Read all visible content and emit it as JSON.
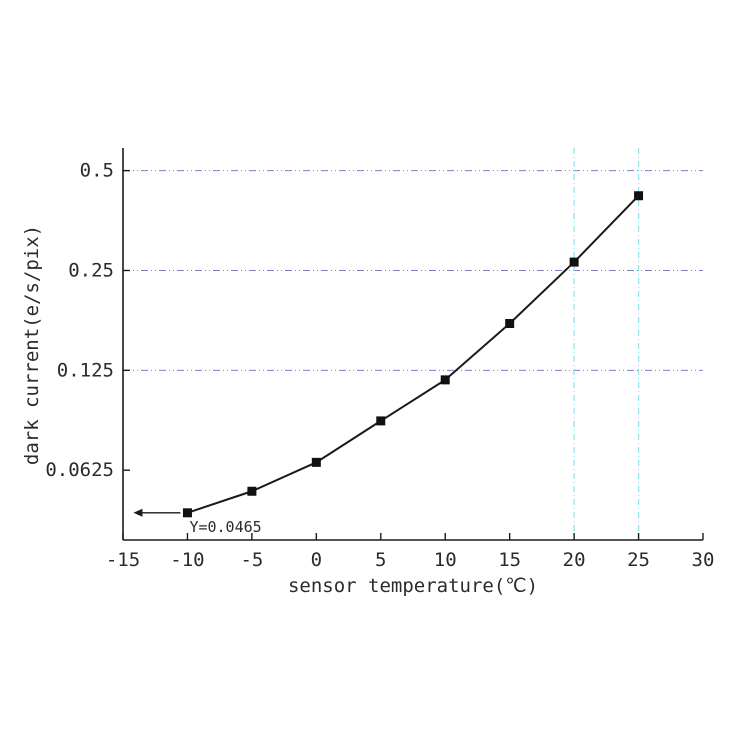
{
  "page": {
    "background": "#ffffff"
  },
  "chart_data": {
    "type": "line",
    "title": "",
    "xlabel": "sensor temperature(℃)",
    "ylabel": "dark current(e/s/pix)",
    "x": [
      -10,
      -5,
      0,
      5,
      10,
      15,
      20,
      25
    ],
    "y": [
      0.0465,
      0.054,
      0.066,
      0.088,
      0.117,
      0.173,
      0.265,
      0.42
    ],
    "xlim": [
      -15,
      30
    ],
    "ylim": [
      0.0385,
      0.585
    ],
    "y_scale": "log2",
    "x_ticks": [
      -15,
      -10,
      -5,
      0,
      5,
      10,
      15,
      20,
      25,
      30
    ],
    "x_tick_labels": [
      "-15",
      "-10",
      "-5",
      "0",
      "5",
      "10",
      "15",
      "20",
      "25",
      "30"
    ],
    "y_ticks": [
      0.0625,
      0.125,
      0.25,
      0.5
    ],
    "y_tick_labels": [
      "0.0625",
      "0.125",
      "0.25",
      "0.5"
    ],
    "h_gridlines": [
      0.125,
      0.25,
      0.5
    ],
    "v_gridlines": [
      20,
      25
    ],
    "grid_on": true,
    "legend": "none",
    "colors": {
      "line": "#1a1a1a",
      "marker": "#111111",
      "axis": "#1a1a1a",
      "h_grid": "#6868b8",
      "v_grid": "#8fe2ec",
      "text": "#2b2b2b"
    },
    "marker": "square",
    "annotation": {
      "text": "Y=0.0465",
      "at_x": -10,
      "at_y": 0.0465,
      "arrow_direction": "left"
    }
  }
}
